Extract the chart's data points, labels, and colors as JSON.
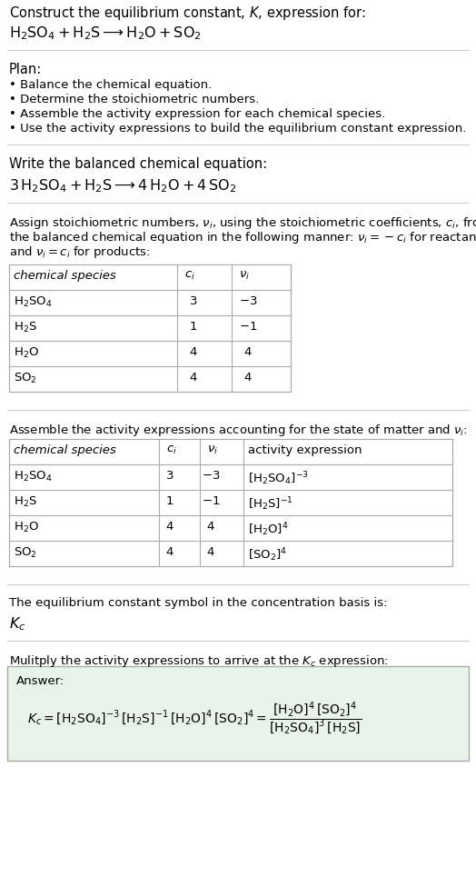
{
  "bg_color": "#ffffff",
  "text_color": "#000000",
  "title_line1": "Construct the equilibrium constant, $K$, expression for:",
  "title_line2": "$\\mathrm{H_2SO_4 + H_2S \\longrightarrow H_2O + SO_2}$",
  "plan_header": "Plan:",
  "plan_bullets": [
    "Balance the chemical equation.",
    "Determine the stoichiometric numbers.",
    "Assemble the activity expression for each chemical species.",
    "Use the activity expressions to build the equilibrium constant expression."
  ],
  "balanced_header": "Write the balanced chemical equation:",
  "balanced_eq": "$\\mathrm{3\\,H_2SO_4 + H_2S \\longrightarrow 4\\,H_2O + 4\\,SO_2}$",
  "stoich_header": "Assign stoichiometric numbers, $\\nu_i$, using the stoichiometric coefficients, $c_i$, from\nthe balanced chemical equation in the following manner: $\\nu_i = -c_i$ for reactants\nand $\\nu_i = c_i$ for products:",
  "table1_headers": [
    "chemical species",
    "$c_i$",
    "$\\nu_i$"
  ],
  "table1_rows": [
    [
      "$\\mathrm{H_2SO_4}$",
      "3",
      "$-3$"
    ],
    [
      "$\\mathrm{H_2S}$",
      "1",
      "$-1$"
    ],
    [
      "$\\mathrm{H_2O}$",
      "4",
      "4"
    ],
    [
      "$\\mathrm{SO_2}$",
      "4",
      "4"
    ]
  ],
  "activity_header": "Assemble the activity expressions accounting for the state of matter and $\\nu_i$:",
  "table2_headers": [
    "chemical species",
    "$c_i$",
    "$\\nu_i$",
    "activity expression"
  ],
  "table2_rows": [
    [
      "$\\mathrm{H_2SO_4}$",
      "3",
      "$-3$",
      "$[\\mathrm{H_2SO_4}]^{-3}$"
    ],
    [
      "$\\mathrm{H_2S}$",
      "1",
      "$-1$",
      "$[\\mathrm{H_2S}]^{-1}$"
    ],
    [
      "$\\mathrm{H_2O}$",
      "4",
      "4",
      "$[\\mathrm{H_2O}]^{4}$"
    ],
    [
      "$\\mathrm{SO_2}$",
      "4",
      "4",
      "$[\\mathrm{SO_2}]^{4}$"
    ]
  ],
  "kc_header": "The equilibrium constant symbol in the concentration basis is:",
  "kc_symbol": "$K_c$",
  "multiply_header": "Mulitply the activity expressions to arrive at the $K_c$ expression:",
  "answer_label": "Answer:",
  "answer_eq_line1": "$K_c = [\\mathrm{H_2SO_4}]^{-3}\\,[\\mathrm{H_2S}]^{-1}\\,[\\mathrm{H_2O}]^{4}\\,[\\mathrm{SO_2}]^{4}$",
  "answer_eq_frac_num": "$[\\mathrm{H_2O}]^4\\,[\\mathrm{SO_2}]^4$",
  "answer_eq_frac_den": "$[\\mathrm{H_2SO_4}]^3\\,[\\mathrm{H_2S}]$",
  "answer_box_color": "#e8f4e8",
  "answer_box_border": "#aaaaaa",
  "table_border_color": "#aaaaaa",
  "separator_color": "#cccccc",
  "font_size": 10.5,
  "small_font_size": 9.5
}
